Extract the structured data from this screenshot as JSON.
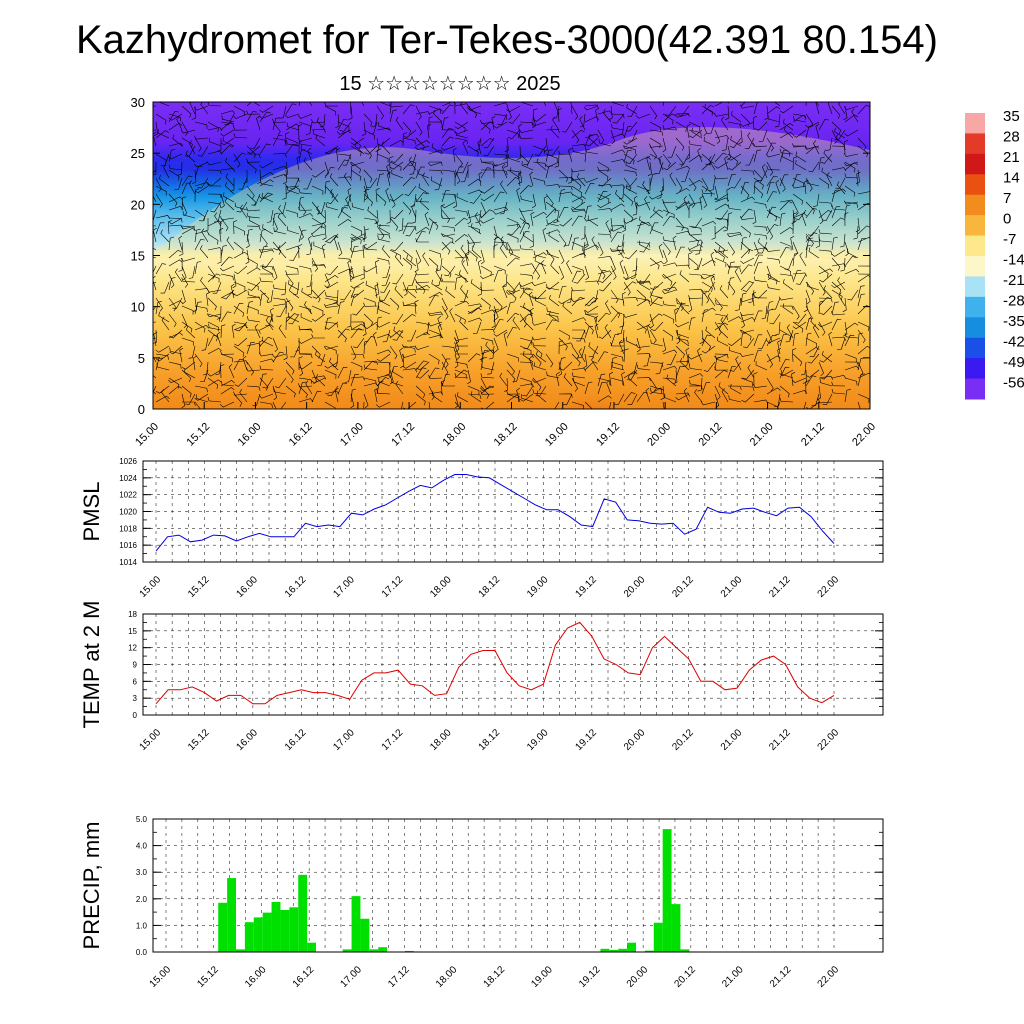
{
  "title": "Kazhydromet for Ter-Tekes-3000(42.391 80.154)",
  "subtitle": "15 ☆☆☆☆☆☆☆☆ 2025",
  "time_labels": [
    "15.00",
    "15.12",
    "16.00",
    "16.12",
    "17.00",
    "17.12",
    "18.00",
    "18.12",
    "19.00",
    "19.12",
    "20.00",
    "20.12",
    "21.00",
    "21.12",
    "22.00"
  ],
  "colorbar": {
    "labels": [
      "35",
      "28",
      "21",
      "14",
      "7",
      "0",
      "-7",
      "-14",
      "-21",
      "-28",
      "-35",
      "-42",
      "-49",
      "-56"
    ],
    "colors": [
      "#f8a6a6",
      "#e33b2a",
      "#d01818",
      "#ea5010",
      "#f28c1c",
      "#f9b63c",
      "#fde88c",
      "#fdf6c8",
      "#a8e2f4",
      "#3fb2ee",
      "#168ee0",
      "#1a50e8",
      "#3a1af0",
      "#7a2ef4"
    ]
  },
  "chart_data": [
    {
      "type": "heatmap",
      "title": "",
      "xlabel": "",
      "ylabel": "",
      "y_ticks": [
        "0",
        "5",
        "10",
        "15",
        "20",
        "25",
        "30"
      ],
      "ylim": [
        0,
        30
      ],
      "xlim": [
        "15.00",
        "22.00"
      ],
      "note_series": "temperature shading with wind barbs by height level"
    },
    {
      "type": "line",
      "ylabel": "PMSL",
      "ylim": [
        1014,
        1026
      ],
      "y_ticks": [
        "1014",
        "1016",
        "1018",
        "1020",
        "1022",
        "1024",
        "1026"
      ],
      "color": "#0000dd",
      "values": [
        1015.3,
        1017.0,
        1017.2,
        1016.4,
        1016.6,
        1017.2,
        1017.1,
        1016.5,
        1017.0,
        1017.4,
        1017.0,
        1017.0,
        1017.0,
        1018.6,
        1018.2,
        1018.4,
        1018.2,
        1019.8,
        1019.6,
        1020.3,
        1020.8,
        1021.6,
        1022.4,
        1023.1,
        1022.8,
        1023.7,
        1024.4,
        1024.4,
        1024.1,
        1024.0,
        1023.2,
        1022.4,
        1021.6,
        1020.8,
        1020.2,
        1020.2,
        1019.4,
        1018.4,
        1018.2,
        1021.5,
        1021.1,
        1019.0,
        1018.9,
        1018.6,
        1018.5,
        1018.6,
        1017.3,
        1017.9,
        1020.5,
        1019.9,
        1019.8,
        1020.3,
        1020.4,
        1019.9,
        1019.5,
        1020.4,
        1020.5,
        1019.4,
        1017.7,
        1016.2
      ]
    },
    {
      "type": "line",
      "ylabel": "TEMP at 2 M",
      "ylim": [
        0,
        18
      ],
      "y_ticks": [
        "0",
        "3",
        "6",
        "9",
        "12",
        "15",
        "18"
      ],
      "color": "#dd0000",
      "values": [
        2.0,
        4.5,
        4.5,
        5.0,
        4.0,
        2.5,
        3.5,
        3.5,
        2.0,
        2.0,
        3.5,
        4.0,
        4.5,
        4.0,
        4.0,
        3.5,
        2.8,
        6.2,
        7.5,
        7.5,
        8.0,
        5.5,
        5.2,
        3.5,
        3.8,
        8.5,
        10.8,
        11.5,
        11.5,
        7.5,
        5.2,
        4.5,
        5.5,
        12.5,
        15.5,
        16.5,
        14.0,
        10.0,
        9.0,
        7.5,
        7.2,
        12.0,
        14.0,
        12.0,
        10.0,
        6.0,
        6.0,
        4.5,
        4.8,
        8.0,
        9.8,
        10.5,
        9.0,
        5.0,
        3.0,
        2.2,
        3.5
      ]
    },
    {
      "type": "bar",
      "ylabel": "PRECIP, mm",
      "ylim": [
        0,
        5
      ],
      "y_ticks": [
        "0.0",
        "1.0",
        "2.0",
        "3.0",
        "4.0",
        "5.0"
      ],
      "color": "#00e000",
      "values": [
        0,
        0,
        0,
        0,
        0,
        0,
        0,
        1.85,
        2.78,
        0.1,
        1.12,
        1.3,
        1.48,
        1.88,
        1.58,
        1.68,
        2.9,
        0.35,
        0,
        0,
        0,
        0.1,
        2.1,
        1.25,
        0.1,
        0.18,
        0,
        0,
        0.04,
        0.02,
        0,
        0,
        0,
        0,
        0,
        0,
        0,
        0,
        0,
        0,
        0,
        0,
        0,
        0,
        0,
        0,
        0,
        0,
        0,
        0,
        0.12,
        0.08,
        0.12,
        0.35,
        0,
        0.05,
        1.1,
        4.62,
        1.8,
        0.1,
        0.02,
        0,
        0,
        0,
        0,
        0,
        0,
        0,
        0,
        0,
        0,
        0,
        0,
        0,
        0,
        0,
        0,
        0,
        0,
        0,
        0
      ]
    }
  ]
}
